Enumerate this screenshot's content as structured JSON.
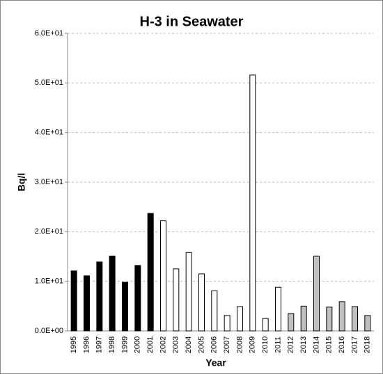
{
  "chart_data": {
    "type": "bar",
    "title": "H-3 in Seawater",
    "x_label": "Year",
    "y_label": "Bq/l",
    "categories": [
      "1995",
      "1996",
      "1997",
      "1998",
      "1999",
      "2000",
      "2001",
      "2002",
      "2003",
      "2004",
      "2005",
      "2006",
      "2007",
      "2008",
      "2009",
      "2010",
      "2011",
      "2012",
      "2013",
      "2014",
      "2015",
      "2016",
      "2017",
      "2018"
    ],
    "values": [
      12.1,
      11.1,
      13.9,
      15.1,
      9.8,
      13.2,
      23.7,
      22.2,
      12.5,
      15.8,
      11.5,
      8.1,
      3.1,
      4.9,
      51.6,
      2.5,
      8.8,
      3.5,
      5.0,
      15.1,
      4.8,
      5.9,
      4.9,
      3.1
    ],
    "colors": [
      "#000000",
      "#000000",
      "#000000",
      "#000000",
      "#000000",
      "#000000",
      "#000000",
      "#ffffff",
      "#ffffff",
      "#ffffff",
      "#ffffff",
      "#ffffff",
      "#ffffff",
      "#ffffff",
      "#ffffff",
      "#ffffff",
      "#ffffff",
      "#c0c0c0",
      "#c0c0c0",
      "#c0c0c0",
      "#c0c0c0",
      "#c0c0c0",
      "#c0c0c0",
      "#c0c0c0"
    ],
    "ylim": [
      0,
      60
    ],
    "yticks": [
      {
        "value": 0,
        "label": "0.0E+00"
      },
      {
        "value": 10,
        "label": "1.0E+01"
      },
      {
        "value": 20,
        "label": "2.0E+01"
      },
      {
        "value": 30,
        "label": "3.0E+01"
      },
      {
        "value": 40,
        "label": "4.0E+01"
      },
      {
        "value": 50,
        "label": "5.0E+01"
      },
      {
        "value": 60,
        "label": "6.0E+01"
      }
    ],
    "grid": true
  }
}
